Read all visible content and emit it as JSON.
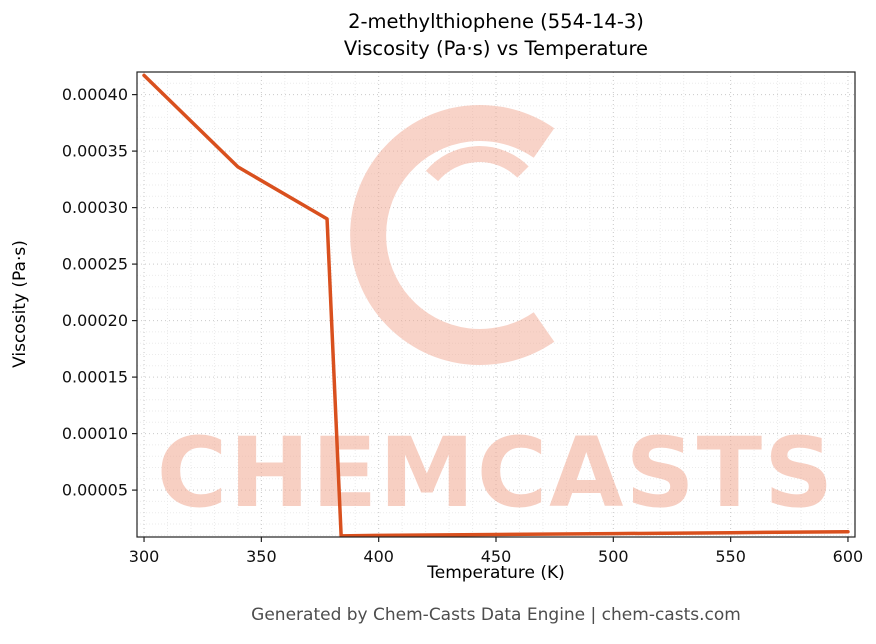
{
  "title": {
    "line1": "2-methylthiophene (554-14-3)",
    "line2": "Viscosity (Pa·s) vs Temperature"
  },
  "footer": "Generated by Chem-Casts Data Engine | chem-casts.com",
  "watermark": {
    "text": "CHEMCASTS",
    "color": "#f2a causing"
  },
  "chart_data": {
    "type": "line",
    "title": "2-methylthiophene (554-14-3) — Viscosity (Pa·s) vs Temperature",
    "xlabel": "Temperature (K)",
    "ylabel": "Viscosity (Pa·s)",
    "x": [
      300,
      340,
      378,
      384,
      400,
      450,
      500,
      550,
      600
    ],
    "y": [
      0.000417,
      0.000336,
      0.00029,
      9.5e-06,
      9.9e-06,
      1.07e-05,
      1.15e-05,
      1.23e-05,
      1.32e-05
    ],
    "xlim": [
      297,
      603
    ],
    "ylim": [
      8.5e-06,
      0.00042
    ],
    "xticks": {
      "values": [
        300,
        350,
        400,
        450,
        500,
        550,
        600
      ],
      "labels": [
        "300",
        "350",
        "400",
        "450",
        "500",
        "550",
        "600"
      ]
    },
    "yticks": {
      "values": [
        5e-05,
        0.0001,
        0.00015,
        0.0002,
        0.00025,
        0.0003,
        0.00035,
        0.0004
      ],
      "labels": [
        "0.00005",
        "0.00010",
        "0.00015",
        "0.00020",
        "0.00025",
        "0.00030",
        "0.00035",
        "0.00040"
      ]
    },
    "x_minor_step": 10,
    "y_minor_step": 1e-05,
    "line_color": "#d9501e",
    "line_width": 3.5,
    "grid": true,
    "legend": false
  }
}
